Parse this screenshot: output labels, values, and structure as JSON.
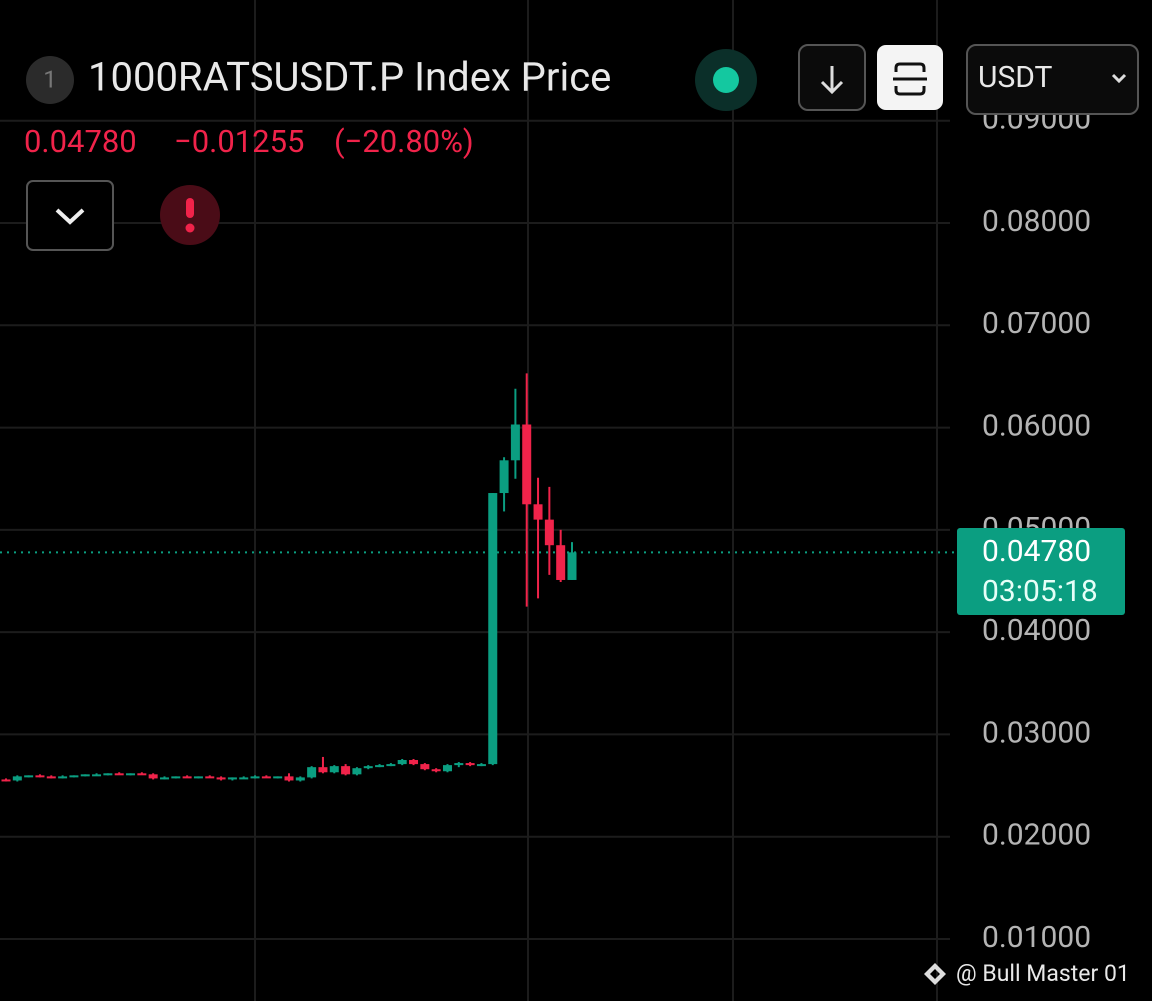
{
  "chart_data": {
    "type": "candlestick",
    "badge": "1",
    "title": "1000RATSUSDT.P Index Price",
    "current_price": {
      "value": 0.0478,
      "label": "0.04780"
    },
    "change": "−0.01255",
    "change_pct": "(−20.80%)",
    "countdown": "03:05:18",
    "currency": "USDT",
    "watermark": "@ Bull Master 01",
    "up_color": "#0b9e81",
    "down_color": "#f0234a",
    "grid": true,
    "ylim": [
      0.00394,
      0.1018
    ],
    "yticks": [
      {
        "value": 0.01,
        "label": "0.01000"
      },
      {
        "value": 0.02,
        "label": "0.02000"
      },
      {
        "value": 0.03,
        "label": "0.03000"
      },
      {
        "value": 0.04,
        "label": "0.04000"
      },
      {
        "value": 0.05,
        "label": "0.05000"
      },
      {
        "value": 0.06,
        "label": "0.06000"
      },
      {
        "value": 0.07,
        "label": "0.07000"
      },
      {
        "value": 0.08,
        "label": "0.08000"
      },
      {
        "value": 0.09,
        "label": "0.09000"
      }
    ],
    "open": [
      0.0256,
      0.0255,
      0.0259,
      0.026,
      0.0259,
      0.0258,
      0.0259,
      0.026,
      0.0261,
      0.0261,
      0.0262,
      0.0261,
      0.0262,
      0.0261,
      0.0257,
      0.0258,
      0.0259,
      0.0258,
      0.0259,
      0.0258,
      0.0256,
      0.0258,
      0.0258,
      0.0259,
      0.0258,
      0.0259,
      0.0255,
      0.0258,
      0.0268,
      0.0263,
      0.0269,
      0.0261,
      0.0267,
      0.0269,
      0.027,
      0.0271,
      0.0275,
      0.0271,
      0.0266,
      0.0264,
      0.027,
      0.0272,
      0.027,
      0.0271,
      0.0536,
      0.0568,
      0.0603,
      0.0525,
      0.051,
      0.0485,
      0.0451
    ],
    "high": [
      0.0257,
      0.026,
      0.026,
      0.0261,
      0.026,
      0.026,
      0.026,
      0.0261,
      0.0262,
      0.0262,
      0.0263,
      0.0262,
      0.0263,
      0.0262,
      0.0259,
      0.0259,
      0.026,
      0.0259,
      0.026,
      0.0259,
      0.0258,
      0.0259,
      0.026,
      0.026,
      0.0259,
      0.0262,
      0.0259,
      0.0269,
      0.0278,
      0.027,
      0.0271,
      0.0268,
      0.027,
      0.0271,
      0.0272,
      0.0276,
      0.0276,
      0.0272,
      0.0267,
      0.0271,
      0.0273,
      0.0273,
      0.0272,
      0.0536,
      0.0571,
      0.0638,
      0.0653,
      0.0551,
      0.0542,
      0.05,
      0.0488
    ],
    "low": [
      0.0254,
      0.0254,
      0.0258,
      0.0258,
      0.0257,
      0.0257,
      0.0258,
      0.0259,
      0.026,
      0.026,
      0.0261,
      0.026,
      0.0261,
      0.0256,
      0.0256,
      0.0257,
      0.0258,
      0.0257,
      0.0258,
      0.0255,
      0.0255,
      0.0257,
      0.0257,
      0.0258,
      0.0257,
      0.0254,
      0.0254,
      0.0257,
      0.0262,
      0.0262,
      0.026,
      0.026,
      0.0266,
      0.0268,
      0.0269,
      0.027,
      0.027,
      0.0265,
      0.0263,
      0.0263,
      0.0268,
      0.0269,
      0.0269,
      0.027,
      0.0518,
      0.055,
      0.0425,
      0.0433,
      0.0456,
      0.0449,
      0.0451
    ],
    "close": [
      0.0255,
      0.0259,
      0.026,
      0.0259,
      0.0258,
      0.0259,
      0.026,
      0.0261,
      0.0261,
      0.0262,
      0.0261,
      0.0262,
      0.0261,
      0.0257,
      0.0258,
      0.0259,
      0.0258,
      0.0259,
      0.0258,
      0.0256,
      0.0258,
      0.0258,
      0.0259,
      0.0258,
      0.0259,
      0.0255,
      0.0258,
      0.0268,
      0.0263,
      0.0269,
      0.0261,
      0.0267,
      0.0269,
      0.027,
      0.0271,
      0.0275,
      0.0271,
      0.0266,
      0.0264,
      0.027,
      0.0272,
      0.027,
      0.0271,
      0.0536,
      0.0568,
      0.0603,
      0.0525,
      0.051,
      0.0485,
      0.0451,
      0.0478
    ]
  }
}
